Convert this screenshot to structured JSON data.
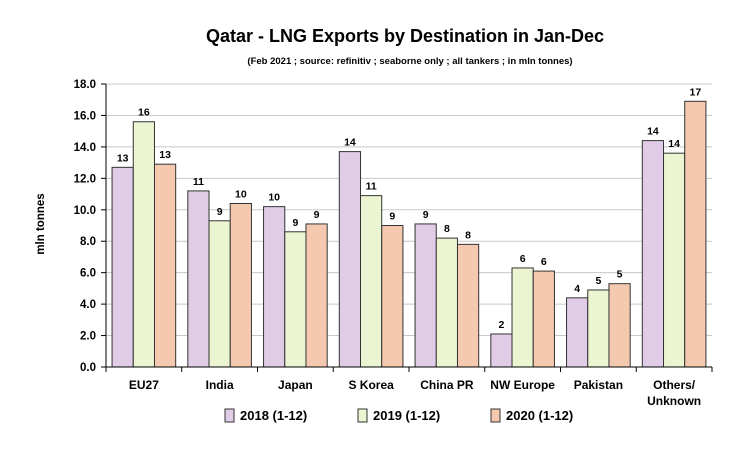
{
  "chart_data": {
    "type": "bar",
    "title": "Qatar - LNG Exports by Destination in Jan-Dec",
    "subtitle": "(Feb 2021 ; source: refinitiv ; seaborne only ; all tankers ; in mln tonnes)",
    "ylabel": "mln tonnes",
    "xlabel": "",
    "ylim": [
      0,
      18
    ],
    "yticks": [
      "0.0",
      "2.0",
      "4.0",
      "6.0",
      "8.0",
      "10.0",
      "12.0",
      "14.0",
      "16.0",
      "18.0"
    ],
    "grid": true,
    "legend_position": "bottom",
    "categories": [
      "EU27",
      "India",
      "Japan",
      "S Korea",
      "China PR",
      "NW Europe",
      "Pakistan",
      "Others/ Unknown"
    ],
    "series": [
      {
        "name": "2018 (1-12)",
        "color": "#e0cce6",
        "values": [
          12.7,
          11.2,
          10.2,
          13.7,
          9.1,
          2.1,
          4.4,
          14.4
        ],
        "labels": [
          "13",
          "11",
          "10",
          "14",
          "9",
          "2",
          "4",
          "14"
        ]
      },
      {
        "name": "2019 (1-12)",
        "color": "#ebf5d2",
        "values": [
          15.6,
          9.3,
          8.6,
          10.9,
          8.2,
          6.3,
          4.9,
          13.6
        ],
        "labels": [
          "16",
          "9",
          "9",
          "11",
          "8",
          "6",
          "5",
          "14"
        ]
      },
      {
        "name": "2020 (1-12)",
        "color": "#f5c8b0",
        "values": [
          12.9,
          10.4,
          9.1,
          9.0,
          7.8,
          6.1,
          5.3,
          16.9
        ],
        "labels": [
          "13",
          "10",
          "9",
          "9",
          "8",
          "6",
          "5",
          "17"
        ]
      }
    ]
  }
}
